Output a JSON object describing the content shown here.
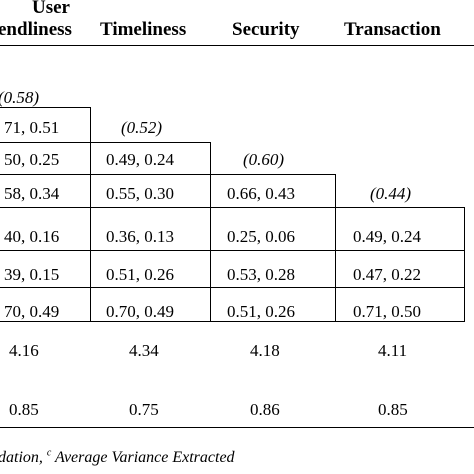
{
  "headers": {
    "user_line1": "User",
    "user_line2": "endliness",
    "timeliness": "Timeliness",
    "security": "Security",
    "transaction": "Transaction"
  },
  "rows": [
    [
      "(0.58)",
      "",
      "",
      ""
    ],
    [
      "71, 0.51",
      "(0.52)",
      "",
      ""
    ],
    [
      "50, 0.25",
      "0.49, 0.24",
      "(0.60)",
      ""
    ],
    [
      "58, 0.34",
      "0.55, 0.30",
      "0.66, 0.43",
      "(0.44)"
    ],
    [
      "40, 0.16",
      "0.36, 0.13",
      "0.25, 0.06",
      "0.49, 0.24"
    ],
    [
      "39, 0.15",
      "0.51, 0.26",
      "0.53, 0.28",
      "0.47, 0.22"
    ],
    [
      "70, 0.49",
      "0.70, 0.49",
      "0.51, 0.26",
      "0.71, 0.50"
    ]
  ],
  "means": [
    "4.16",
    "4.34",
    "4.18",
    "4.11"
  ],
  "last_row": [
    "0.85",
    "0.75",
    "0.86",
    "0.85"
  ],
  "footnote": {
    "part1": "dation, ",
    "sup": "c",
    "part2": " Average Variance Extracted"
  }
}
